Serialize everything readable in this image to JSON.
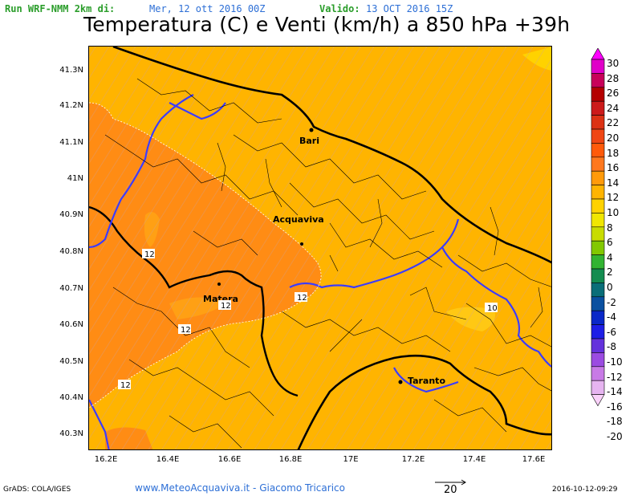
{
  "header": {
    "run_label": "Run WRF-NMM 2km di:",
    "run_date": "Mer, 12 ott 2016 00Z",
    "valid_label": "Valido:",
    "valid_date": "13 OCT 2016 15Z"
  },
  "title": "Temperatura (C) e Venti (km/h) a 850 hPa +39h",
  "axes": {
    "y_ticks": [
      "41.3N",
      "41.2N",
      "41.1N",
      "41N",
      "40.9N",
      "40.8N",
      "40.7N",
      "40.6N",
      "40.5N",
      "40.4N",
      "40.3N"
    ],
    "x_ticks": [
      "16.2E",
      "16.4E",
      "16.6E",
      "16.8E",
      "17E",
      "17.2E",
      "17.4E",
      "17.6E"
    ]
  },
  "places": [
    "Bari",
    "Acquaviva",
    "Matera",
    "Taranto"
  ],
  "contour_labels": [
    "12",
    "12",
    "12",
    "12",
    "12",
    "10"
  ],
  "legend": {
    "values": [
      "30",
      "28",
      "26",
      "24",
      "22",
      "20",
      "18",
      "16",
      "14",
      "12",
      "10",
      "8",
      "6",
      "4",
      "2",
      "0",
      "-2",
      "-4",
      "-6",
      "-8",
      "-10",
      "-12",
      "-14",
      "-16",
      "-18",
      "-20"
    ],
    "colors": [
      "#ff00ff",
      "#e000c8",
      "#c8005a",
      "#b40000",
      "#cc1a1a",
      "#dc3214",
      "#f04614",
      "#ff5a0a",
      "#ff781e",
      "#ff9a0a",
      "#ffb400",
      "#ffd200",
      "#f0e600",
      "#c8dc00",
      "#82c800",
      "#32b432",
      "#148c50",
      "#0a6e78",
      "#0a50a0",
      "#0a28c8",
      "#1e1ee6",
      "#6432dc",
      "#9b4be1",
      "#c87ae6",
      "#e6b4f0",
      "#fad2fa"
    ]
  },
  "reference_vector": "20",
  "footer": {
    "left": "GrADS: COLA/IGES",
    "credit": "www.MeteoAcquaviva.it  -  Giacomo Tricarico",
    "timestamp": "2016-10-12-09:29"
  }
}
